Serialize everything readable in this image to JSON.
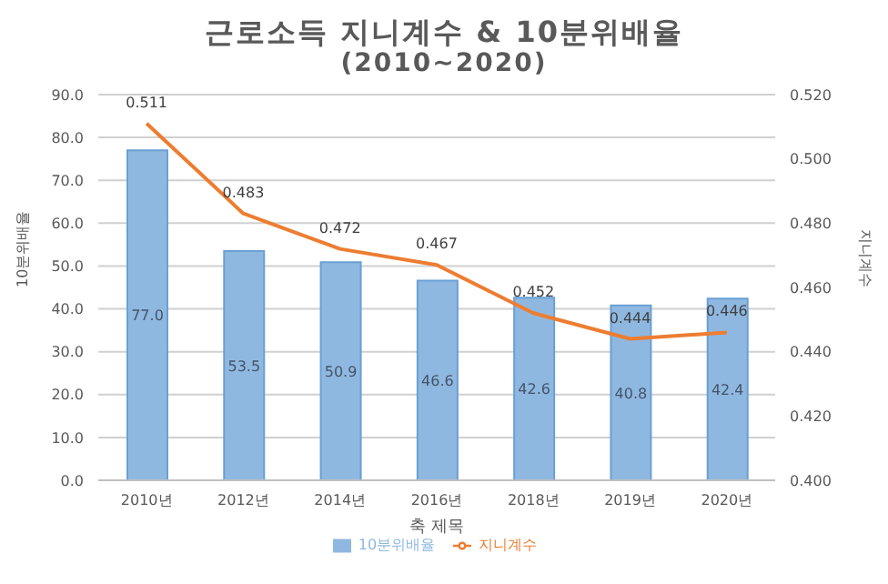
{
  "chart_data": {
    "type": "bar",
    "title": "근로소득 지니계수 & 10분위배율",
    "subtitle": "(2010~2020)",
    "xlabel": "축 제목",
    "ylabel": "10분위배율",
    "y2label": "지니계수",
    "categories": [
      "2010년",
      "2012년",
      "2014년",
      "2016년",
      "2018년",
      "2019년",
      "2020년"
    ],
    "series": [
      {
        "name": "10분위배율",
        "color": "#8fb8e0",
        "values": [
          77.0,
          53.5,
          50.9,
          46.6,
          42.6,
          40.8,
          42.4
        ],
        "value_labels": [
          "77.0",
          "53.5",
          "50.9",
          "46.6",
          "42.6",
          "40.8",
          "42.4"
        ]
      },
      {
        "name": "지니계수",
        "type": "line",
        "axis": "y2",
        "color": "#ed7d31",
        "values": [
          0.511,
          0.483,
          0.472,
          0.467,
          0.452,
          0.444,
          0.446
        ]
      }
    ],
    "ylim": [
      0,
      90
    ],
    "yticks": [
      {
        "value": 0,
        "label": "0.0"
      },
      {
        "value": 10,
        "label": "10.0"
      },
      {
        "value": 20,
        "label": "20.0"
      },
      {
        "value": 30,
        "label": "30.0"
      },
      {
        "value": 40,
        "label": "40.0"
      },
      {
        "value": 50,
        "label": "50.0"
      },
      {
        "value": 60,
        "label": "60.0"
      },
      {
        "value": 70,
        "label": "70.0"
      },
      {
        "value": 80,
        "label": "80.0"
      },
      {
        "value": 90,
        "label": "90.0"
      }
    ],
    "y2lim": [
      0.4,
      0.52
    ],
    "y2ticks": [
      {
        "value": 0.4,
        "label": "0.400"
      },
      {
        "value": 0.42,
        "label": "0.420"
      },
      {
        "value": 0.44,
        "label": "0.440"
      },
      {
        "value": 0.46,
        "label": "0.460"
      },
      {
        "value": 0.48,
        "label": "0.480"
      },
      {
        "value": 0.5,
        "label": "0.500"
      },
      {
        "value": 0.52,
        "label": "0.520"
      }
    ],
    "data_labels": true,
    "grid": "y",
    "legend": "bottom",
    "marker": "none"
  }
}
